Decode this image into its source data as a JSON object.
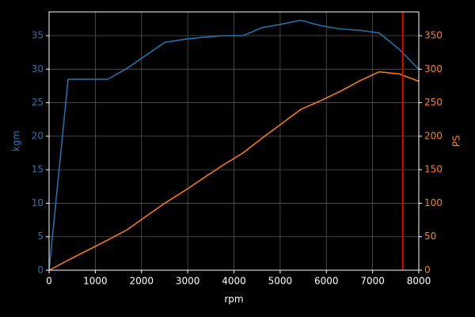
{
  "chart_data": {
    "type": "line",
    "xlabel": "rpm",
    "ylabel": "kgm",
    "y2label": "PS",
    "x": [
      0,
      411,
      1268,
      1679,
      2501,
      2963,
      3392,
      3768,
      4197,
      4608,
      5019,
      5447,
      5875,
      6304,
      6732,
      7143,
      7571,
      8000
    ],
    "series": [
      {
        "name": "kgm",
        "color": "#1f77b4",
        "values": [
          0,
          28.5,
          28.5,
          30.1,
          34.0,
          34.5,
          34.8,
          35.0,
          35.0,
          36.2,
          36.7,
          37.3,
          36.5,
          36.0,
          35.8,
          35.4,
          33.0,
          30.0
        ]
      },
      {
        "name": "PS",
        "color": "#ff7f0e",
        "axis": "y2",
        "values": [
          0,
          15,
          45,
          60,
          100,
          120,
          140,
          157,
          175,
          197,
          218,
          240,
          253,
          267,
          283,
          296,
          293,
          282
        ]
      }
    ],
    "vline": {
      "x": 7650,
      "color": "#ff0000"
    },
    "xlim": [
      0,
      8000
    ],
    "xticks": [
      0,
      1000,
      2000,
      3000,
      4000,
      5000,
      6000,
      7000,
      8000
    ],
    "ylim": [
      0,
      38.55
    ],
    "yticks": [
      0,
      5,
      10,
      15,
      20,
      25,
      30,
      35
    ],
    "y2lim": [
      0,
      385.5
    ],
    "y2ticks": [
      0,
      50,
      100,
      150,
      200,
      250,
      300,
      350
    ],
    "grid": true
  }
}
